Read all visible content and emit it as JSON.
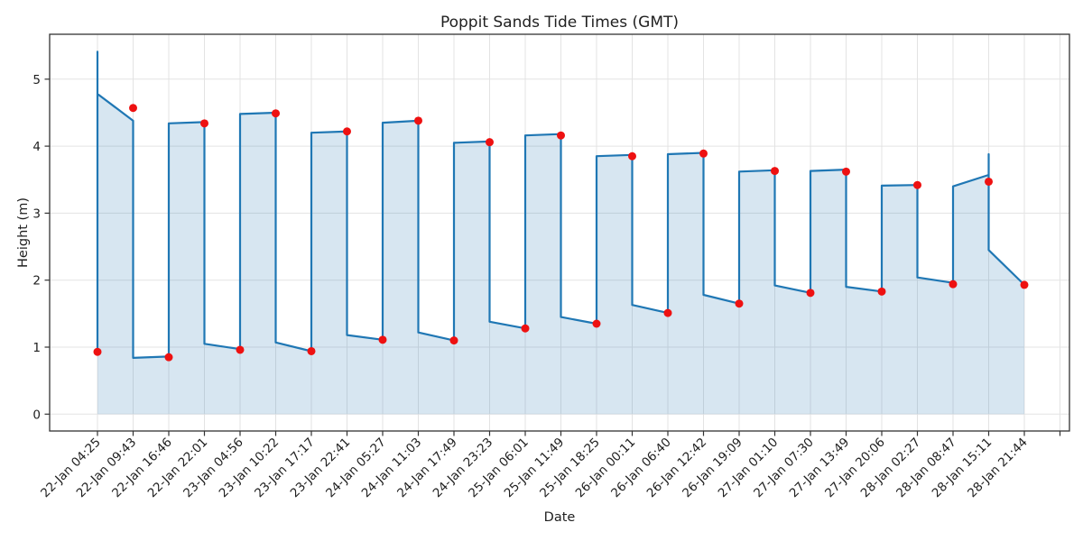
{
  "figure": {
    "title": "Poppit Sands Tide Times (GMT)",
    "xlabel": "Date",
    "ylabel": "Height (m)",
    "colors": {
      "line": "#1f77b4",
      "fill": "rgba(31,119,180,0.18)",
      "marker": "#ee1111",
      "grid": "#e3e3e3",
      "spine": "#333333",
      "text": "#1f1f1f"
    }
  },
  "chart_data": {
    "type": "line",
    "title": "Poppit Sands Tide Times (GMT)",
    "xlabel": "Date",
    "ylabel": "Height (m)",
    "grid": true,
    "legend": "none",
    "xlim": [
      -1.3,
      27.3
    ],
    "ylim": [
      -0.27,
      5.68
    ],
    "y_ticks": [
      0,
      1,
      2,
      3,
      4,
      5
    ],
    "x_tick_labels": [
      "22-Jan 04:25",
      "22-Jan 09:43",
      "22-Jan 16:46",
      "22-Jan 22:01",
      "23-Jan 04:56",
      "23-Jan 10:22",
      "23-Jan 17:17",
      "23-Jan 22:41",
      "24-Jan 05:27",
      "24-Jan 11:03",
      "24-Jan 17:49",
      "24-Jan 23:23",
      "25-Jan 06:01",
      "25-Jan 11:49",
      "25-Jan 18:25",
      "26-Jan 00:11",
      "26-Jan 06:40",
      "26-Jan 12:42",
      "26-Jan 19:09",
      "27-Jan 01:10",
      "27-Jan 07:30",
      "27-Jan 13:49",
      "27-Jan 20:06",
      "28-Jan 02:27",
      "28-Jan 08:47",
      "28-Jan 15:11",
      "28-Jan 21:44"
    ],
    "events": [
      {
        "time": "22-Jan 04:25",
        "height_m": 0.93,
        "type": "low"
      },
      {
        "time": "22-Jan 09:43",
        "height_m": 4.57,
        "type": "high"
      },
      {
        "time": "22-Jan 16:46",
        "height_m": 0.85,
        "type": "low"
      },
      {
        "time": "22-Jan 22:01",
        "height_m": 4.34,
        "type": "high"
      },
      {
        "time": "23-Jan 04:56",
        "height_m": 0.96,
        "type": "low"
      },
      {
        "time": "23-Jan 10:22",
        "height_m": 4.49,
        "type": "high"
      },
      {
        "time": "23-Jan 17:17",
        "height_m": 0.94,
        "type": "low"
      },
      {
        "time": "23-Jan 22:41",
        "height_m": 4.22,
        "type": "high"
      },
      {
        "time": "24-Jan 05:27",
        "height_m": 1.11,
        "type": "low"
      },
      {
        "time": "24-Jan 11:03",
        "height_m": 4.38,
        "type": "high"
      },
      {
        "time": "24-Jan 17:49",
        "height_m": 1.1,
        "type": "low"
      },
      {
        "time": "24-Jan 23:23",
        "height_m": 4.06,
        "type": "high"
      },
      {
        "time": "25-Jan 06:01",
        "height_m": 1.28,
        "type": "low"
      },
      {
        "time": "25-Jan 11:49",
        "height_m": 4.16,
        "type": "high"
      },
      {
        "time": "25-Jan 18:25",
        "height_m": 1.35,
        "type": "low"
      },
      {
        "time": "26-Jan 00:11",
        "height_m": 3.85,
        "type": "high"
      },
      {
        "time": "26-Jan 06:40",
        "height_m": 1.51,
        "type": "low"
      },
      {
        "time": "26-Jan 12:42",
        "height_m": 3.89,
        "type": "high"
      },
      {
        "time": "26-Jan 19:09",
        "height_m": 1.65,
        "type": "low"
      },
      {
        "time": "27-Jan 01:10",
        "height_m": 3.63,
        "type": "high"
      },
      {
        "time": "27-Jan 07:30",
        "height_m": 1.81,
        "type": "low"
      },
      {
        "time": "27-Jan 13:49",
        "height_m": 3.62,
        "type": "high"
      },
      {
        "time": "27-Jan 20:06",
        "height_m": 1.83,
        "type": "low"
      },
      {
        "time": "28-Jan 02:27",
        "height_m": 3.42,
        "type": "high"
      },
      {
        "time": "28-Jan 08:47",
        "height_m": 1.94,
        "type": "low"
      },
      {
        "time": "28-Jan 15:11",
        "height_m": 3.47,
        "type": "high"
      },
      {
        "time": "28-Jan 21:44",
        "height_m": 1.93,
        "type": "low"
      }
    ],
    "series": [
      {
        "name": "tide-height-line",
        "note": "drawn polyline vertices as [x_tick_index, height_m]",
        "values": [
          [
            0,
            0.93
          ],
          [
            0,
            5.41
          ],
          [
            0,
            4.78
          ],
          [
            1,
            4.38
          ],
          [
            1,
            0.84
          ],
          [
            2,
            0.86
          ],
          [
            2,
            4.34
          ],
          [
            3,
            4.36
          ],
          [
            3,
            1.05
          ],
          [
            4,
            0.97
          ],
          [
            4,
            4.48
          ],
          [
            5,
            4.5
          ],
          [
            5,
            1.07
          ],
          [
            6,
            0.94
          ],
          [
            6,
            4.2
          ],
          [
            7,
            4.22
          ],
          [
            7,
            1.18
          ],
          [
            8,
            1.11
          ],
          [
            8,
            4.35
          ],
          [
            9,
            4.38
          ],
          [
            9,
            1.22
          ],
          [
            10,
            1.1
          ],
          [
            10,
            4.05
          ],
          [
            11,
            4.07
          ],
          [
            11,
            1.38
          ],
          [
            12,
            1.28
          ],
          [
            12,
            4.16
          ],
          [
            13,
            4.18
          ],
          [
            13,
            1.45
          ],
          [
            14,
            1.35
          ],
          [
            14,
            3.85
          ],
          [
            15,
            3.87
          ],
          [
            15,
            1.63
          ],
          [
            16,
            1.51
          ],
          [
            16,
            3.88
          ],
          [
            17,
            3.9
          ],
          [
            17,
            1.78
          ],
          [
            18,
            1.65
          ],
          [
            18,
            3.62
          ],
          [
            19,
            3.64
          ],
          [
            19,
            1.92
          ],
          [
            20,
            1.81
          ],
          [
            20,
            3.63
          ],
          [
            21,
            3.65
          ],
          [
            21,
            1.9
          ],
          [
            22,
            1.83
          ],
          [
            22,
            3.41
          ],
          [
            23,
            3.42
          ],
          [
            23,
            2.04
          ],
          [
            24,
            1.96
          ],
          [
            24,
            3.4
          ],
          [
            25,
            3.57
          ],
          [
            25,
            3.88
          ],
          [
            25,
            2.45
          ],
          [
            26,
            1.93
          ]
        ]
      },
      {
        "name": "tide-event-markers",
        "x": [
          0,
          1,
          2,
          3,
          4,
          5,
          6,
          7,
          8,
          9,
          10,
          11,
          12,
          13,
          14,
          15,
          16,
          17,
          18,
          19,
          20,
          21,
          22,
          23,
          24,
          25,
          26
        ],
        "values": [
          0.93,
          4.57,
          0.85,
          4.34,
          0.96,
          4.49,
          0.94,
          4.22,
          1.11,
          4.38,
          1.1,
          4.06,
          1.28,
          4.16,
          1.35,
          3.85,
          1.51,
          3.89,
          1.65,
          3.63,
          1.81,
          3.62,
          1.83,
          3.42,
          1.94,
          3.47,
          1.93
        ]
      }
    ]
  }
}
